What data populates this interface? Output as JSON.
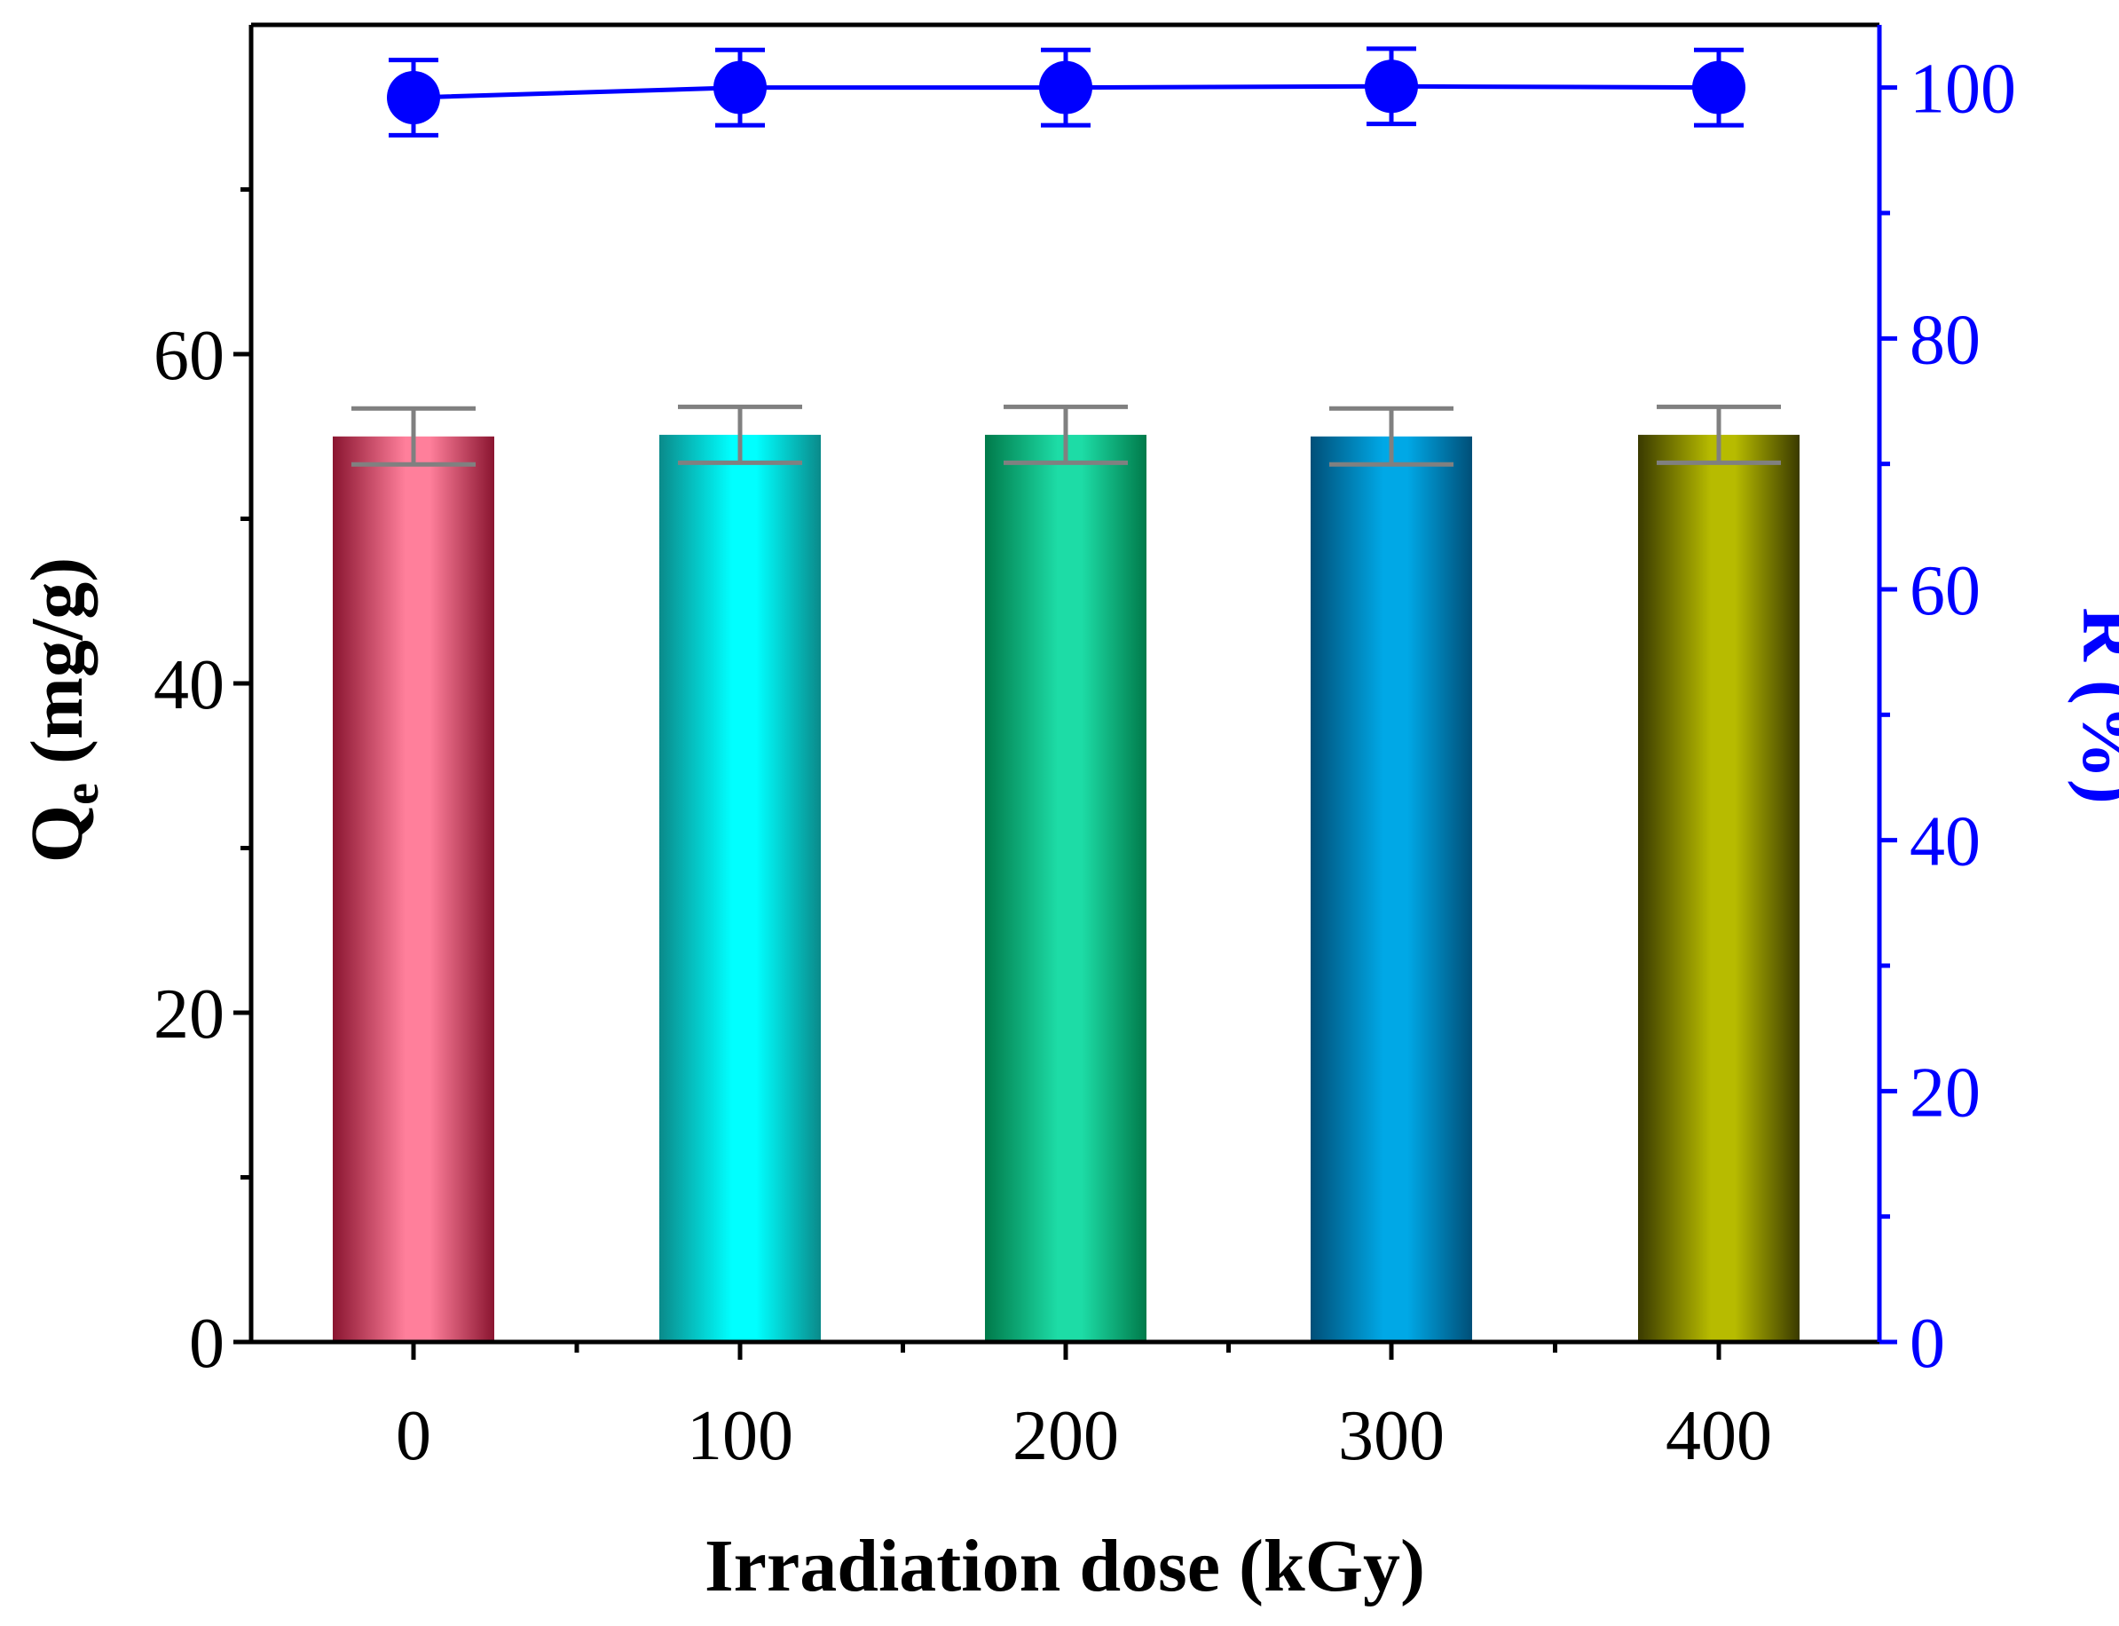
{
  "chart_data": {
    "type": "bar",
    "categories": [
      "0",
      "100",
      "200",
      "300",
      "400"
    ],
    "xlabel": "Irradiation dose (kGy)",
    "ylabel": {
      "main": "Q",
      "sub": "e",
      "rest": " (mg/g)"
    },
    "ylabel_right": "R (%)",
    "ylim": [
      0,
      80
    ],
    "ylim_right": [
      0,
      105
    ],
    "yticks": [
      0,
      20,
      40,
      60
    ],
    "yticks_right": [
      0,
      20,
      40,
      60,
      80,
      100
    ],
    "grid": false,
    "bars": {
      "values": [
        55.0,
        55.1,
        55.1,
        55.0,
        55.1
      ],
      "errors": [
        1.7,
        1.7,
        1.7,
        1.7,
        1.7
      ],
      "colors": [
        [
          "#8a1530",
          "#ff7f9b"
        ],
        [
          "#0a8a8a",
          "#00ffff"
        ],
        [
          "#007a4a",
          "#1ddca6"
        ],
        [
          "#004f78",
          "#00a8e6"
        ],
        [
          "#3a3a00",
          "#b7bb00"
        ]
      ],
      "error_color": "#808080"
    },
    "line": {
      "values": [
        99.2,
        100.0,
        100.0,
        100.1,
        100.0
      ],
      "errors": [
        3.0,
        3.0,
        3.0,
        3.0,
        3.0
      ],
      "color": "#0000ff"
    }
  }
}
